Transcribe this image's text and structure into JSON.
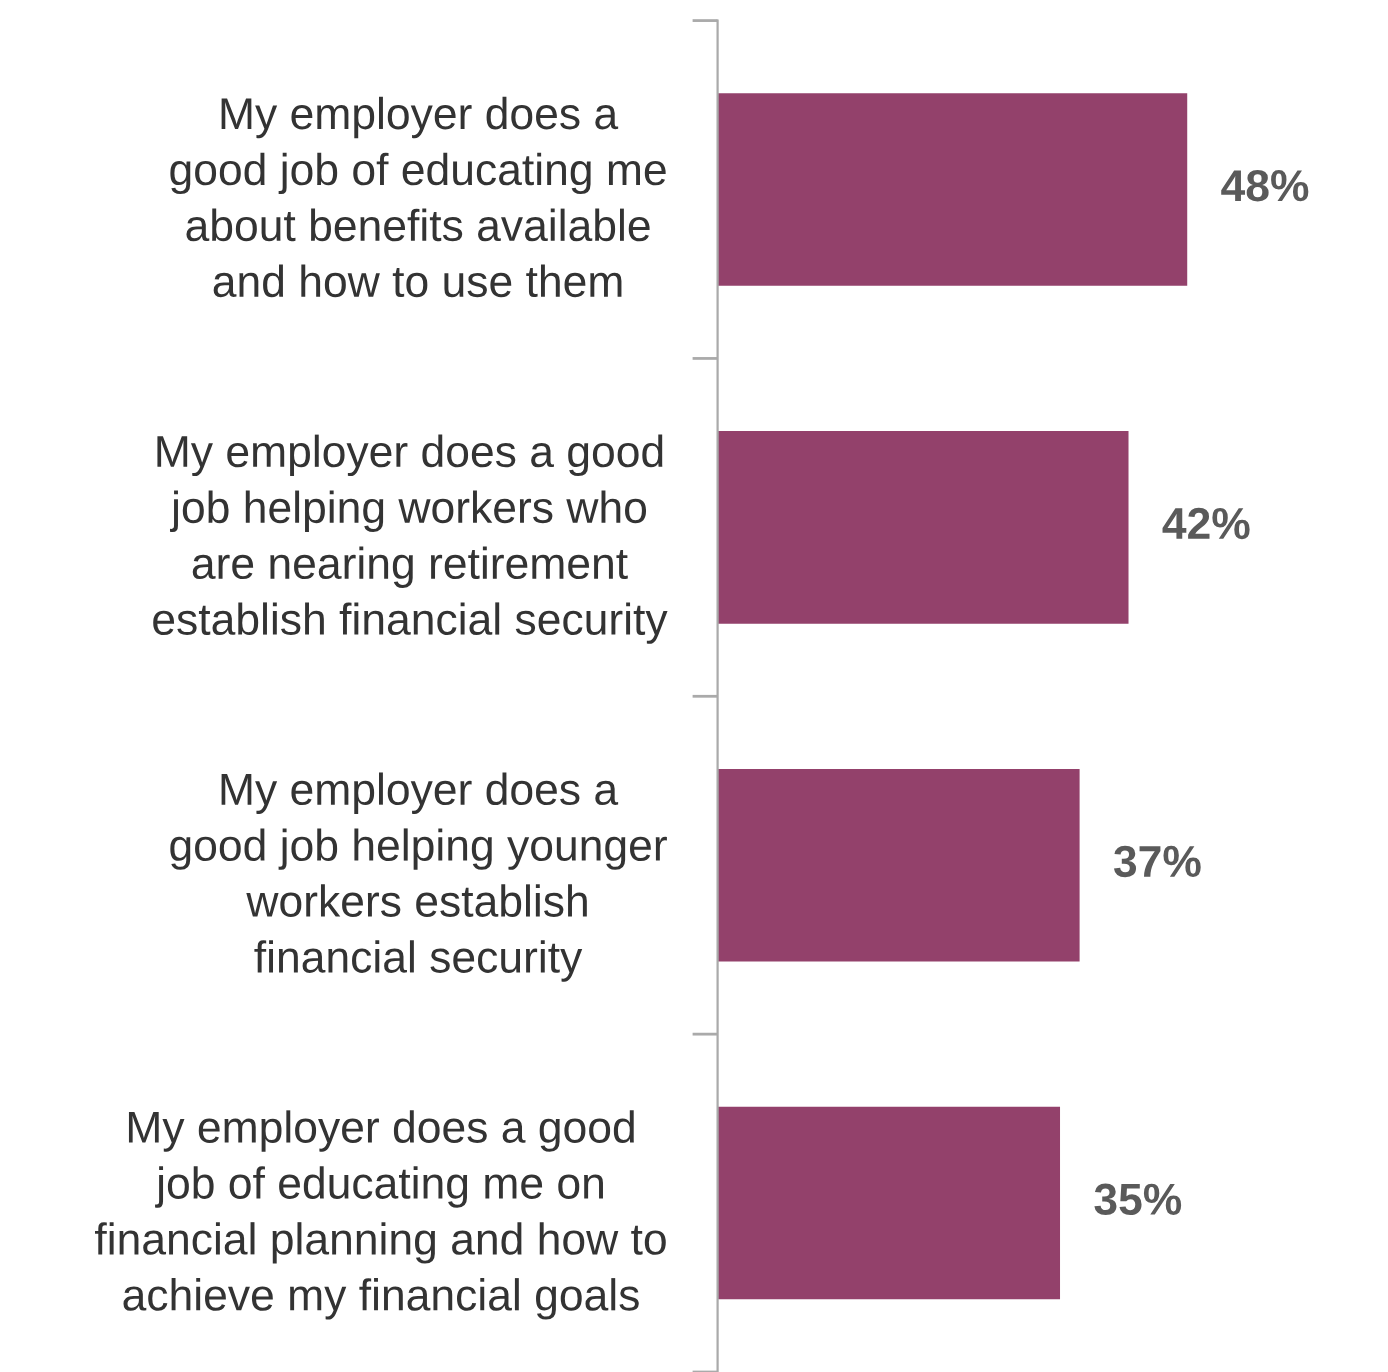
{
  "chart_data": {
    "type": "bar",
    "orientation": "horizontal",
    "categories": [
      "My employer does a\ngood job of educating me\nabout benefits available\nand how to use them",
      "My employer does a good\njob helping workers who\nare nearing retirement\nestablish financial security",
      "My employer does a\ngood job helping younger\nworkers establish\nfinancial security",
      "My employer does a good\njob of educating me on\nfinancial planning and how to\nachieve my financial goals"
    ],
    "values": [
      48,
      42,
      37,
      35
    ],
    "value_labels": [
      "48%",
      "42%",
      "37%",
      "35%"
    ],
    "color": "#93416b",
    "grid": false,
    "legend": false
  }
}
